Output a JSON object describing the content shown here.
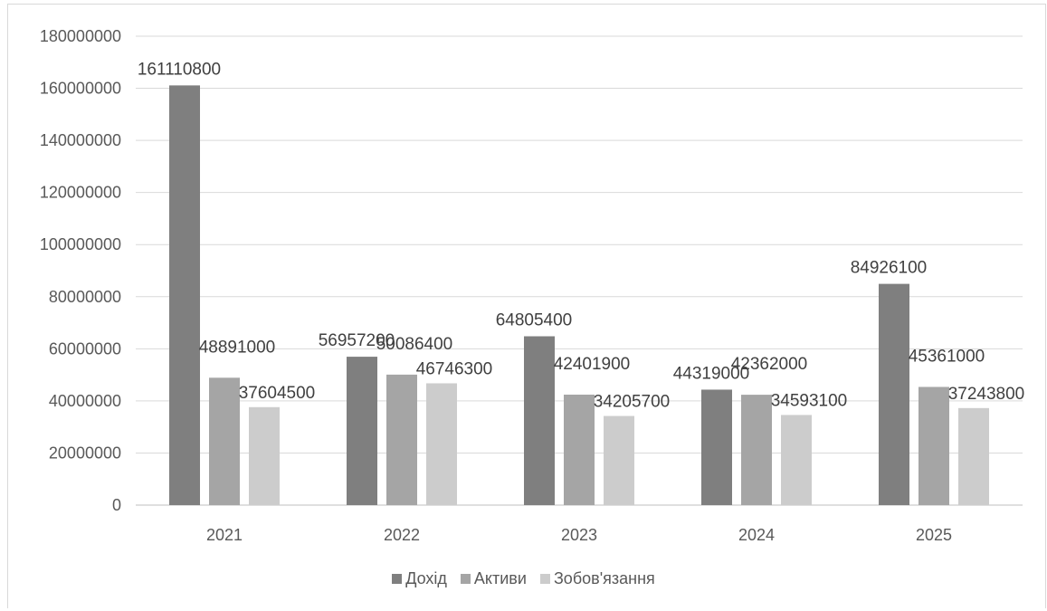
{
  "chart_data": {
    "type": "bar",
    "categories": [
      "2021",
      "2022",
      "2023",
      "2024",
      "2025"
    ],
    "series": [
      {
        "name": "Дохід",
        "color": "#7f7f7f",
        "values": [
          161110800,
          56957200,
          64805400,
          44319000,
          84926100
        ]
      },
      {
        "name": "Активи",
        "color": "#a5a5a5",
        "values": [
          48891000,
          50086400,
          42401900,
          42362000,
          45361000
        ]
      },
      {
        "name": "Зобов'язання",
        "color": "#cccccc",
        "values": [
          37604500,
          46746300,
          34205700,
          34593100,
          37243800
        ]
      }
    ],
    "yticks": [
      "0",
      "20000000",
      "40000000",
      "60000000",
      "80000000",
      "100000000",
      "120000000",
      "140000000",
      "160000000",
      "180000000"
    ],
    "ylim": [
      0,
      180000000
    ],
    "grid": true,
    "legend_position": "bottom"
  }
}
